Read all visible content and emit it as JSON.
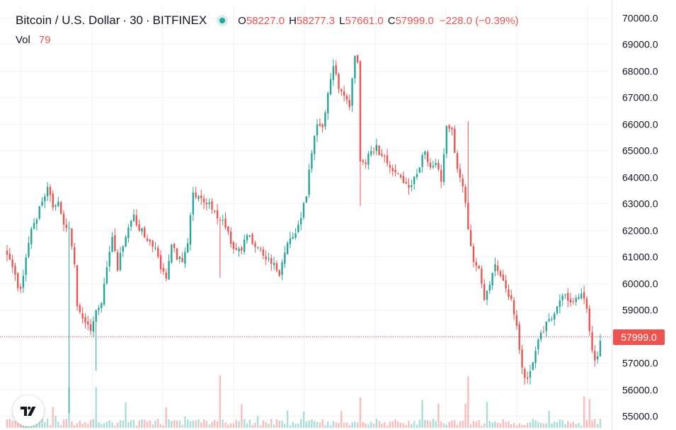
{
  "symbol": {
    "name": "Bitcoin / U.S. Dollar",
    "interval": "30",
    "exchange": "BITFINEX",
    "separator": "·"
  },
  "ohlc": {
    "open_label": "O",
    "open": "58227.0",
    "high_label": "H",
    "high": "58277.3",
    "low_label": "L",
    "low": "57661.0",
    "close_label": "C",
    "close": "57999.0",
    "change": "−228.0 (−0.39%)"
  },
  "volume": {
    "label": "Vol",
    "value": "79"
  },
  "last_price_label": "57999.0",
  "colors": {
    "up": "#26a69a",
    "down": "#ef5350",
    "grid": "#f0f3fa",
    "text": "#131722",
    "status": "#26a69a"
  },
  "icons": {
    "status": "market-open-dot-icon",
    "logo": "tradingview-logo-icon"
  },
  "chart_data": {
    "type": "candlestick",
    "title": "Bitcoin / U.S. Dollar · 30 · BITFINEX",
    "y_axis": {
      "position": "right",
      "ticks": [
        55000,
        56000,
        57000,
        58000,
        59000,
        60000,
        61000,
        62000,
        63000,
        64000,
        65000,
        66000,
        67000,
        68000,
        69000,
        70000
      ],
      "tick_labels": [
        "55000.0",
        "56000.0",
        "57000.0",
        "58000.0",
        "59000.0",
        "60000.0",
        "61000.0",
        "62000.0",
        "63000.0",
        "64000.0",
        "65000.0",
        "66000.0",
        "67000.0",
        "68000.0",
        "69000.0",
        "70000.0"
      ],
      "ylim": [
        54550,
        70450
      ]
    },
    "grid": true,
    "last_price": 57999.0,
    "price_path": [
      [
        0,
        61200
      ],
      [
        3,
        60200
      ],
      [
        5,
        59700
      ],
      [
        7,
        61000
      ],
      [
        9,
        62000
      ],
      [
        11,
        62400
      ],
      [
        13,
        63200
      ],
      [
        15,
        63500
      ],
      [
        17,
        62900
      ],
      [
        19,
        63000
      ],
      [
        21,
        62300
      ],
      [
        23,
        62100
      ],
      [
        25,
        60800
      ],
      [
        26,
        59200
      ],
      [
        27,
        58900
      ],
      [
        29,
        58600
      ],
      [
        31,
        58300
      ],
      [
        33,
        58900
      ],
      [
        35,
        59300
      ],
      [
        37,
        60500
      ],
      [
        39,
        61700
      ],
      [
        41,
        60600
      ],
      [
        43,
        61500
      ],
      [
        45,
        62200
      ],
      [
        47,
        62500
      ],
      [
        49,
        62100
      ],
      [
        51,
        61800
      ],
      [
        53,
        61500
      ],
      [
        55,
        61300
      ],
      [
        57,
        60600
      ],
      [
        59,
        60100
      ],
      [
        61,
        61500
      ],
      [
        63,
        61000
      ],
      [
        65,
        60900
      ],
      [
        67,
        61600
      ],
      [
        69,
        63300
      ],
      [
        71,
        63400
      ],
      [
        73,
        63000
      ],
      [
        75,
        63100
      ],
      [
        77,
        62700
      ],
      [
        79,
        62400
      ],
      [
        81,
        62100
      ],
      [
        83,
        61600
      ],
      [
        85,
        61200
      ],
      [
        87,
        61300
      ],
      [
        89,
        61800
      ],
      [
        91,
        61600
      ],
      [
        93,
        61300
      ],
      [
        95,
        61000
      ],
      [
        97,
        60900
      ],
      [
        99,
        60700
      ],
      [
        101,
        60400
      ],
      [
        103,
        61200
      ],
      [
        105,
        61800
      ],
      [
        107,
        61900
      ],
      [
        109,
        62400
      ],
      [
        111,
        63400
      ],
      [
        113,
        65000
      ],
      [
        115,
        66000
      ],
      [
        117,
        65900
      ],
      [
        119,
        67200
      ],
      [
        121,
        68100
      ],
      [
        123,
        67400
      ],
      [
        125,
        67000
      ],
      [
        127,
        66700
      ],
      [
        129,
        68600
      ],
      [
        130,
        68200
      ],
      [
        131,
        64600
      ],
      [
        133,
        64500
      ],
      [
        135,
        65000
      ],
      [
        137,
        65100
      ],
      [
        139,
        64700
      ],
      [
        141,
        64600
      ],
      [
        143,
        64200
      ],
      [
        145,
        64000
      ],
      [
        147,
        63800
      ],
      [
        149,
        63500
      ],
      [
        151,
        63900
      ],
      [
        153,
        64400
      ],
      [
        155,
        65000
      ],
      [
        157,
        64300
      ],
      [
        159,
        64500
      ],
      [
        161,
        63900
      ],
      [
        163,
        65800
      ],
      [
        165,
        65700
      ],
      [
        167,
        64200
      ],
      [
        169,
        63700
      ],
      [
        171,
        62100
      ],
      [
        172,
        61400
      ],
      [
        173,
        60800
      ],
      [
        175,
        60500
      ],
      [
        177,
        59400
      ],
      [
        179,
        60000
      ],
      [
        181,
        60600
      ],
      [
        183,
        60300
      ],
      [
        185,
        59800
      ],
      [
        187,
        59400
      ],
      [
        189,
        58400
      ],
      [
        191,
        56800
      ],
      [
        193,
        56300
      ],
      [
        195,
        57000
      ],
      [
        197,
        57900
      ],
      [
        199,
        58200
      ],
      [
        201,
        58700
      ],
      [
        203,
        58800
      ],
      [
        205,
        59300
      ],
      [
        207,
        59700
      ],
      [
        209,
        59200
      ],
      [
        211,
        59500
      ],
      [
        213,
        59700
      ],
      [
        215,
        59000
      ],
      [
        217,
        57500
      ],
      [
        218,
        57100
      ],
      [
        219,
        57300
      ],
      [
        220,
        57900
      ]
    ],
    "spikes": [
      {
        "at": 23,
        "low": 55100
      },
      {
        "at": 33,
        "low": 56700
      },
      {
        "at": 79,
        "low": 60200
      },
      {
        "at": 131,
        "low": 62900
      },
      {
        "at": 171,
        "high": 66100
      }
    ]
  }
}
